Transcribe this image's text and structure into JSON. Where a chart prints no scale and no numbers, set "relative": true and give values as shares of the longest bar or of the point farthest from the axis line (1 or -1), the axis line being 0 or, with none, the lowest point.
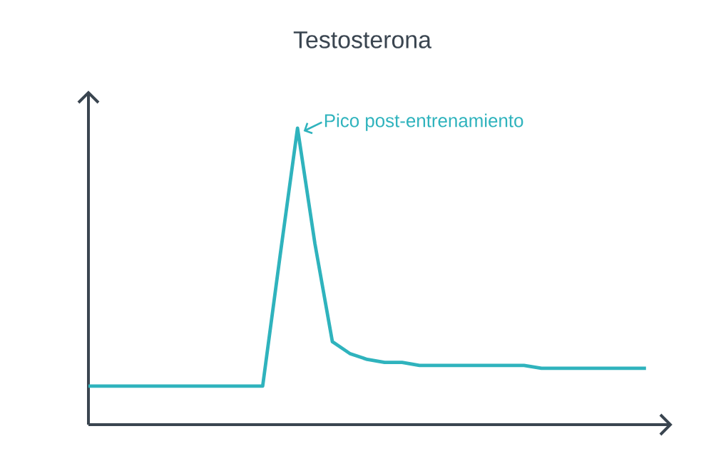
{
  "chart_data": {
    "type": "line",
    "title": "Testosterona",
    "relative": true,
    "color": "#2fb3bd",
    "categories": [
      null,
      null,
      null,
      null,
      null,
      null,
      null,
      null,
      null,
      null,
      null,
      null,
      null,
      null,
      null,
      null,
      null,
      null,
      null,
      null,
      null,
      null,
      null,
      null,
      null,
      null,
      null,
      null,
      null,
      null,
      null,
      null,
      null
    ],
    "values": [
      0.13,
      0.13,
      0.13,
      0.13,
      0.13,
      0.13,
      0.13,
      0.13,
      0.13,
      0.13,
      0.13,
      0.57,
      1,
      0.61,
      0.28,
      0.24,
      0.22,
      0.21,
      0.21,
      0.2,
      0.2,
      0.2,
      0.2,
      0.2,
      0.2,
      0.2,
      0.19,
      0.19,
      0.19,
      0.19,
      0.19,
      0.19,
      0.19
    ],
    "annotations": [
      "Pico post-entrenamiento"
    ]
  }
}
